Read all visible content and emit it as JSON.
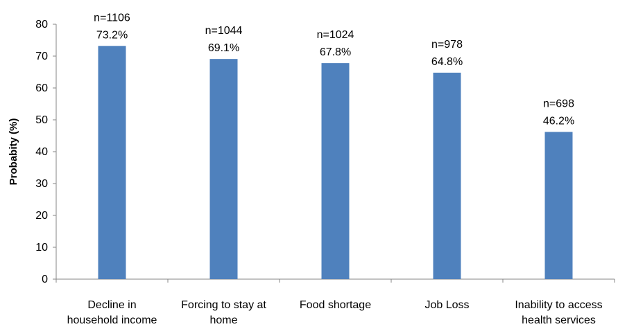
{
  "chart_data": {
    "type": "bar",
    "title": "",
    "xlabel": "",
    "ylabel": "Probabity (%)",
    "ylim": [
      0,
      80
    ],
    "yticks": [
      0,
      10,
      20,
      30,
      40,
      50,
      60,
      70,
      80
    ],
    "grid": false,
    "bar_color": "#4F81BD",
    "categories": [
      [
        "Decline in",
        "household income"
      ],
      [
        "Forcing to stay at",
        "home"
      ],
      [
        "Food shortage"
      ],
      [
        "Job Loss"
      ],
      [
        "Inability to access",
        "health services"
      ]
    ],
    "values": [
      73.2,
      69.1,
      67.8,
      64.8,
      46.2
    ],
    "counts": [
      "n=1106",
      "n=1044",
      "n=1024",
      "n=978",
      "n=698"
    ],
    "value_labels": [
      "73.2%",
      "69.1%",
      "67.8%",
      "64.8%",
      "46.2%"
    ]
  }
}
